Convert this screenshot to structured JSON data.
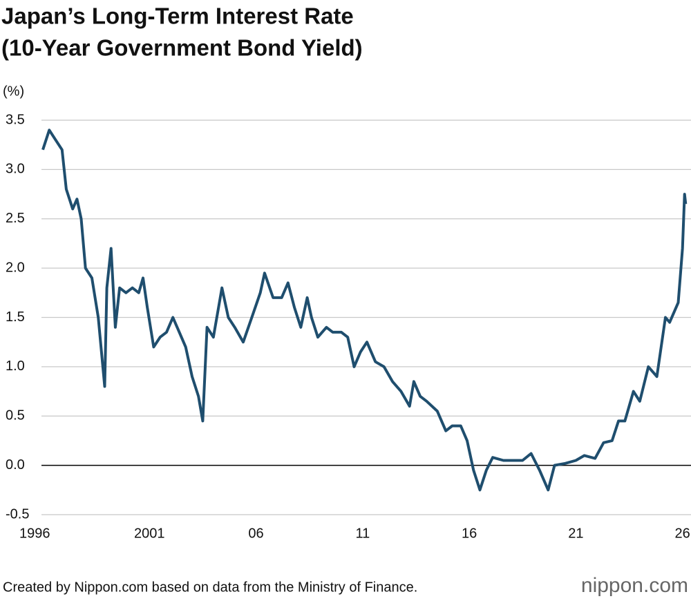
{
  "chart_data": {
    "type": "line",
    "title": "Japan’s Long-Term Interest Rate",
    "subtitle": "(10-Year Government Bond Yield)",
    "y_label": "(%)",
    "source": "Created by Nippon.com based on data from the Ministry of Finance.",
    "logo": "nippon.com",
    "xlim": [
      1996,
      2026.4
    ],
    "xticks": [
      1996,
      {
        "value": 2001,
        "label": "2001"
      },
      {
        "value": 2006,
        "label": "06"
      },
      {
        "value": 2011,
        "label": "11"
      },
      {
        "value": 2016,
        "label": "16"
      },
      {
        "value": 2021,
        "label": "21"
      },
      {
        "value": 2026,
        "label": "26"
      }
    ],
    "ylim": [
      -0.5,
      3.5
    ],
    "yticks": [
      -0.5,
      {
        "value": 0,
        "label": "0.0"
      },
      0.5,
      {
        "value": 1,
        "label": "1.0"
      },
      1.5,
      {
        "value": 2,
        "label": "2.0"
      },
      2.5,
      {
        "value": 3,
        "label": "3.0"
      },
      3.5
    ],
    "grid": true,
    "series": [
      {
        "color": "#1f4e6e",
        "x": [
          1996.0,
          1996.3,
          1996.6,
          1996.9,
          1997.1,
          1997.4,
          1997.6,
          1997.8,
          1998.0,
          1998.3,
          1998.6,
          1998.9,
          1999.0,
          1999.2,
          1999.4,
          1999.6,
          1999.9,
          2000.2,
          2000.5,
          2000.7,
          2000.9,
          2001.2,
          2001.5,
          2001.8,
          2002.1,
          2002.4,
          2002.7,
          2003.0,
          2003.3,
          2003.5,
          2003.7,
          2004.0,
          2004.4,
          2004.7,
          2005.0,
          2005.4,
          2005.8,
          2006.2,
          2006.4,
          2006.8,
          2007.2,
          2007.5,
          2007.8,
          2008.1,
          2008.4,
          2008.6,
          2008.9,
          2009.3,
          2009.6,
          2010.0,
          2010.3,
          2010.6,
          2010.9,
          2011.2,
          2011.6,
          2012.0,
          2012.4,
          2012.8,
          2013.2,
          2013.4,
          2013.7,
          2014.0,
          2014.5,
          2014.9,
          2015.2,
          2015.6,
          2015.9,
          2016.2,
          2016.5,
          2016.8,
          2017.1,
          2017.6,
          2018.0,
          2018.5,
          2018.9,
          2019.3,
          2019.7,
          2020.0,
          2020.5,
          2021.0,
          2021.4,
          2021.9,
          2022.3,
          2022.7,
          2023.0,
          2023.3,
          2023.7,
          2024.0,
          2024.4,
          2024.8,
          2025.2,
          2025.4,
          2025.8,
          2026.0,
          2026.1,
          2026.15
        ],
        "values": [
          3.2,
          3.4,
          3.3,
          3.2,
          2.8,
          2.6,
          2.7,
          2.5,
          2.0,
          1.9,
          1.5,
          0.8,
          1.8,
          2.2,
          1.4,
          1.8,
          1.75,
          1.8,
          1.75,
          1.9,
          1.6,
          1.2,
          1.3,
          1.35,
          1.5,
          1.35,
          1.2,
          0.9,
          0.7,
          0.45,
          1.4,
          1.3,
          1.8,
          1.5,
          1.4,
          1.25,
          1.5,
          1.75,
          1.95,
          1.7,
          1.7,
          1.85,
          1.6,
          1.4,
          1.7,
          1.5,
          1.3,
          1.4,
          1.35,
          1.35,
          1.3,
          1.0,
          1.15,
          1.25,
          1.05,
          1.0,
          0.85,
          0.75,
          0.6,
          0.85,
          0.7,
          0.65,
          0.55,
          0.35,
          0.4,
          0.4,
          0.25,
          -0.05,
          -0.25,
          -0.05,
          0.08,
          0.05,
          0.05,
          0.05,
          0.12,
          -0.05,
          -0.25,
          0.0,
          0.02,
          0.05,
          0.1,
          0.07,
          0.23,
          0.25,
          0.45,
          0.45,
          0.75,
          0.65,
          1.0,
          0.9,
          1.5,
          1.45,
          1.65,
          2.2,
          2.75,
          2.65
        ]
      }
    ]
  }
}
